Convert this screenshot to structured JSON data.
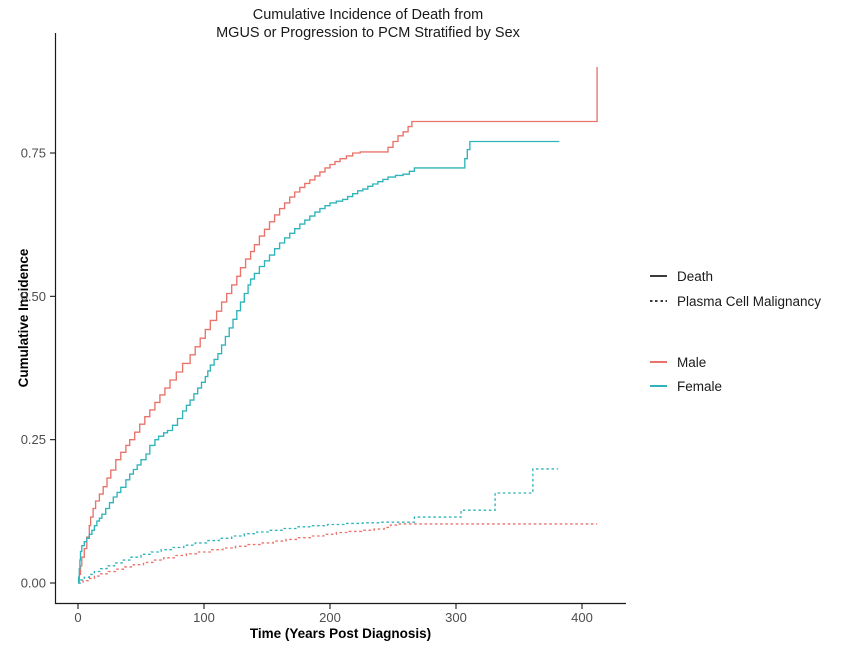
{
  "title_text": "Cumulative Incidence of Death from MGUS or Progression to PCM Stratified by Sex",
  "chart_data": {
    "type": "line",
    "subtype": "step-function cumulative incidence curves",
    "title": "Cumulative Incidence of Death from MGUS or Progression to PCM Stratified by Sex",
    "title_lines": [
      "Cumulative Incidence of Death from",
      "MGUS or Progression to PCM Stratified by Sex"
    ],
    "grid": false,
    "x_axis": {
      "label": "Time (Years Post Diagnosis)",
      "ticks": [
        0,
        100,
        200,
        300,
        400
      ],
      "tick_labels": [
        "0",
        "100",
        "200",
        "300",
        "400"
      ],
      "range": [
        -18,
        435
      ]
    },
    "y_axis": {
      "label": "Cumulative Incidence",
      "ticks": [
        0,
        0.25,
        0.5,
        0.75
      ],
      "tick_labels": [
        "0.00",
        "0.25",
        "0.50",
        "0.75"
      ],
      "range": [
        0,
        0.96
      ]
    },
    "legend": {
      "position": "right",
      "linetype": {
        "items": [
          {
            "label": "Death",
            "linetype": "solid"
          },
          {
            "label": "Plasma Cell Malignancy",
            "linetype": "dotted"
          }
        ]
      },
      "colour": {
        "items": [
          {
            "label": "Male",
            "color": "#e9736b"
          },
          {
            "label": "Female",
            "color": "#2fb4ba"
          }
        ]
      }
    },
    "colors": {
      "male": "#e9736b",
      "female": "#2fb4ba",
      "axis": "#1a1a1a",
      "tick_text": "#4d4d4d"
    },
    "series": [
      {
        "name": "Male - Death",
        "sex": "Male",
        "outcome": "Death",
        "linetype": "solid",
        "color": "#e9736b",
        "points": [
          [
            0,
            0
          ],
          [
            1,
            0.015
          ],
          [
            2,
            0.03
          ],
          [
            3,
            0.045
          ],
          [
            5,
            0.06
          ],
          [
            7,
            0.08
          ],
          [
            9,
            0.1
          ],
          [
            10,
            0.115
          ],
          [
            12,
            0.13
          ],
          [
            14,
            0.143
          ],
          [
            17,
            0.155
          ],
          [
            20,
            0.168
          ],
          [
            23,
            0.183
          ],
          [
            26,
            0.197
          ],
          [
            30,
            0.215
          ],
          [
            34,
            0.228
          ],
          [
            38,
            0.24
          ],
          [
            41,
            0.25
          ],
          [
            45,
            0.263
          ],
          [
            49,
            0.277
          ],
          [
            53,
            0.29
          ],
          [
            57,
            0.302
          ],
          [
            61,
            0.315
          ],
          [
            65,
            0.328
          ],
          [
            69,
            0.34
          ],
          [
            73,
            0.354
          ],
          [
            78,
            0.368
          ],
          [
            83,
            0.383
          ],
          [
            89,
            0.398
          ],
          [
            93,
            0.412
          ],
          [
            97,
            0.427
          ],
          [
            101,
            0.442
          ],
          [
            105,
            0.458
          ],
          [
            110,
            0.474
          ],
          [
            114,
            0.49
          ],
          [
            118,
            0.505
          ],
          [
            122,
            0.52
          ],
          [
            126,
            0.535
          ],
          [
            129,
            0.55
          ],
          [
            133,
            0.565
          ],
          [
            137,
            0.578
          ],
          [
            140,
            0.59
          ],
          [
            144,
            0.605
          ],
          [
            148,
            0.617
          ],
          [
            152,
            0.63
          ],
          [
            156,
            0.642
          ],
          [
            160,
            0.653
          ],
          [
            164,
            0.663
          ],
          [
            168,
            0.673
          ],
          [
            172,
            0.682
          ],
          [
            176,
            0.69
          ],
          [
            180,
            0.697
          ],
          [
            184,
            0.703
          ],
          [
            188,
            0.71
          ],
          [
            192,
            0.717
          ],
          [
            196,
            0.724
          ],
          [
            200,
            0.73
          ],
          [
            204,
            0.735
          ],
          [
            208,
            0.74
          ],
          [
            213,
            0.745
          ],
          [
            218,
            0.75
          ],
          [
            224,
            0.752
          ],
          [
            246,
            0.76
          ],
          [
            250,
            0.77
          ],
          [
            254,
            0.78
          ],
          [
            258,
            0.787
          ],
          [
            262,
            0.796
          ],
          [
            265,
            0.805
          ],
          [
            412,
            0.805
          ],
          [
            412,
            0.9
          ]
        ]
      },
      {
        "name": "Female - Death",
        "sex": "Female",
        "outcome": "Death",
        "linetype": "solid",
        "color": "#2fb4ba",
        "points": [
          [
            0,
            0
          ],
          [
            0.5,
            0.01
          ],
          [
            1,
            0.025
          ],
          [
            1.5,
            0.04
          ],
          [
            2,
            0.055
          ],
          [
            3,
            0.065
          ],
          [
            5,
            0.072
          ],
          [
            7,
            0.078
          ],
          [
            9,
            0.085
          ],
          [
            11,
            0.092
          ],
          [
            13,
            0.1
          ],
          [
            15,
            0.108
          ],
          [
            17,
            0.113
          ],
          [
            19,
            0.12
          ],
          [
            22,
            0.13
          ],
          [
            25,
            0.14
          ],
          [
            28,
            0.15
          ],
          [
            31,
            0.158
          ],
          [
            34,
            0.167
          ],
          [
            38,
            0.18
          ],
          [
            41,
            0.19
          ],
          [
            44,
            0.198
          ],
          [
            47,
            0.206
          ],
          [
            50,
            0.215
          ],
          [
            54,
            0.225
          ],
          [
            57,
            0.24
          ],
          [
            61,
            0.25
          ],
          [
            64,
            0.256
          ],
          [
            68,
            0.262
          ],
          [
            71,
            0.266
          ],
          [
            75,
            0.275
          ],
          [
            79,
            0.287
          ],
          [
            83,
            0.3
          ],
          [
            86,
            0.31
          ],
          [
            89,
            0.319
          ],
          [
            92,
            0.33
          ],
          [
            95,
            0.34
          ],
          [
            98,
            0.35
          ],
          [
            101,
            0.36
          ],
          [
            103,
            0.37
          ],
          [
            105,
            0.38
          ],
          [
            108,
            0.39
          ],
          [
            111,
            0.4
          ],
          [
            114,
            0.415
          ],
          [
            117,
            0.43
          ],
          [
            120,
            0.445
          ],
          [
            123,
            0.46
          ],
          [
            126,
            0.475
          ],
          [
            129,
            0.49
          ],
          [
            132,
            0.505
          ],
          [
            135,
            0.52
          ],
          [
            137,
            0.53
          ],
          [
            140,
            0.54
          ],
          [
            144,
            0.552
          ],
          [
            148,
            0.562
          ],
          [
            152,
            0.572
          ],
          [
            156,
            0.583
          ],
          [
            160,
            0.593
          ],
          [
            164,
            0.602
          ],
          [
            168,
            0.61
          ],
          [
            172,
            0.618
          ],
          [
            176,
            0.626
          ],
          [
            180,
            0.633
          ],
          [
            184,
            0.64
          ],
          [
            188,
            0.647
          ],
          [
            192,
            0.653
          ],
          [
            196,
            0.658
          ],
          [
            200,
            0.663
          ],
          [
            205,
            0.666
          ],
          [
            210,
            0.669
          ],
          [
            214,
            0.674
          ],
          [
            218,
            0.679
          ],
          [
            222,
            0.684
          ],
          [
            226,
            0.687
          ],
          [
            230,
            0.692
          ],
          [
            234,
            0.696
          ],
          [
            238,
            0.7
          ],
          [
            242,
            0.704
          ],
          [
            246,
            0.708
          ],
          [
            252,
            0.711
          ],
          [
            258,
            0.713
          ],
          [
            263,
            0.718
          ],
          [
            267,
            0.724
          ],
          [
            305,
            0.724
          ],
          [
            307,
            0.74
          ],
          [
            309,
            0.756
          ],
          [
            311,
            0.77
          ],
          [
            382,
            0.77
          ]
        ]
      },
      {
        "name": "Male - Plasma Cell Malignancy",
        "sex": "Male",
        "outcome": "Plasma Cell Malignancy",
        "linetype": "dotted",
        "color": "#e9736b",
        "points": [
          [
            0,
            0
          ],
          [
            4,
            0.004
          ],
          [
            8,
            0.008
          ],
          [
            13,
            0.012
          ],
          [
            18,
            0.016
          ],
          [
            24,
            0.02
          ],
          [
            30,
            0.024
          ],
          [
            37,
            0.028
          ],
          [
            44,
            0.032
          ],
          [
            52,
            0.036
          ],
          [
            60,
            0.04
          ],
          [
            68,
            0.044
          ],
          [
            77,
            0.048
          ],
          [
            86,
            0.051
          ],
          [
            95,
            0.054
          ],
          [
            105,
            0.058
          ],
          [
            115,
            0.061
          ],
          [
            125,
            0.064
          ],
          [
            135,
            0.067
          ],
          [
            145,
            0.07
          ],
          [
            155,
            0.073
          ],
          [
            165,
            0.076
          ],
          [
            175,
            0.079
          ],
          [
            185,
            0.082
          ],
          [
            195,
            0.085
          ],
          [
            205,
            0.088
          ],
          [
            215,
            0.09
          ],
          [
            225,
            0.092
          ],
          [
            235,
            0.094
          ],
          [
            243,
            0.097
          ],
          [
            248,
            0.101
          ],
          [
            255,
            0.103
          ],
          [
            412,
            0.103
          ]
        ]
      },
      {
        "name": "Female - Plasma Cell Malignancy",
        "sex": "Female",
        "outcome": "Plasma Cell Malignancy",
        "linetype": "dotted",
        "color": "#2fb4ba",
        "points": [
          [
            0,
            0
          ],
          [
            2,
            0.005
          ],
          [
            5,
            0.01
          ],
          [
            9,
            0.015
          ],
          [
            13,
            0.02
          ],
          [
            18,
            0.025
          ],
          [
            23,
            0.03
          ],
          [
            29,
            0.035
          ],
          [
            35,
            0.04
          ],
          [
            42,
            0.045
          ],
          [
            50,
            0.05
          ],
          [
            58,
            0.054
          ],
          [
            66,
            0.058
          ],
          [
            75,
            0.062
          ],
          [
            84,
            0.066
          ],
          [
            93,
            0.07
          ],
          [
            102,
            0.074
          ],
          [
            112,
            0.078
          ],
          [
            122,
            0.082
          ],
          [
            132,
            0.086
          ],
          [
            142,
            0.089
          ],
          [
            152,
            0.092
          ],
          [
            163,
            0.095
          ],
          [
            174,
            0.098
          ],
          [
            186,
            0.1
          ],
          [
            198,
            0.102
          ],
          [
            212,
            0.104
          ],
          [
            226,
            0.105
          ],
          [
            240,
            0.106
          ],
          [
            267,
            0.115
          ],
          [
            304,
            0.127
          ],
          [
            331,
            0.157
          ],
          [
            361,
            0.199
          ],
          [
            381,
            0.199
          ]
        ]
      }
    ]
  }
}
